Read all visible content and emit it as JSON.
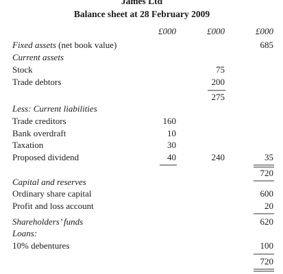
{
  "header": {
    "company": "James Ltd",
    "title": "Balance sheet at 28 February 2009"
  },
  "columns": [
    "£000",
    "£000",
    "£000"
  ],
  "rows": [
    {
      "label": "Fixed assets",
      "note": "(net book value)",
      "values": [
        null,
        null,
        685
      ]
    },
    {
      "label": "Current assets",
      "values": [
        null,
        null,
        null
      ]
    },
    {
      "label": "Stock",
      "values": [
        null,
        75,
        null
      ]
    },
    {
      "label": "Trade debtors",
      "values": [
        null,
        200,
        null
      ]
    },
    {
      "label": null,
      "values": [
        null,
        275,
        null
      ]
    },
    {
      "label": "Less: Current liabilities",
      "values": [
        null,
        null,
        null
      ]
    },
    {
      "label": "Trade creditors",
      "values": [
        160,
        null,
        null
      ]
    },
    {
      "label": "Bank overdraft",
      "values": [
        10,
        null,
        null
      ]
    },
    {
      "label": "Taxation",
      "values": [
        30,
        null,
        null
      ]
    },
    {
      "label": "Proposed dividend",
      "values": [
        40,
        240,
        35
      ]
    },
    {
      "label": null,
      "values": [
        null,
        null,
        720
      ]
    },
    {
      "label": "Capital and reserves",
      "values": [
        null,
        null,
        null
      ]
    },
    {
      "label": "Ordinary share capital",
      "values": [
        null,
        null,
        600
      ]
    },
    {
      "label": "Profit and loss account",
      "values": [
        null,
        null,
        20
      ]
    },
    {
      "label": "Shareholders’ funds",
      "values": [
        null,
        null,
        620
      ]
    },
    {
      "label": "Loans:",
      "values": [
        null,
        null,
        null
      ]
    },
    {
      "label": "10% debentures",
      "values": [
        null,
        null,
        100
      ]
    },
    {
      "label": null,
      "values": [
        null,
        null,
        720
      ]
    }
  ]
}
